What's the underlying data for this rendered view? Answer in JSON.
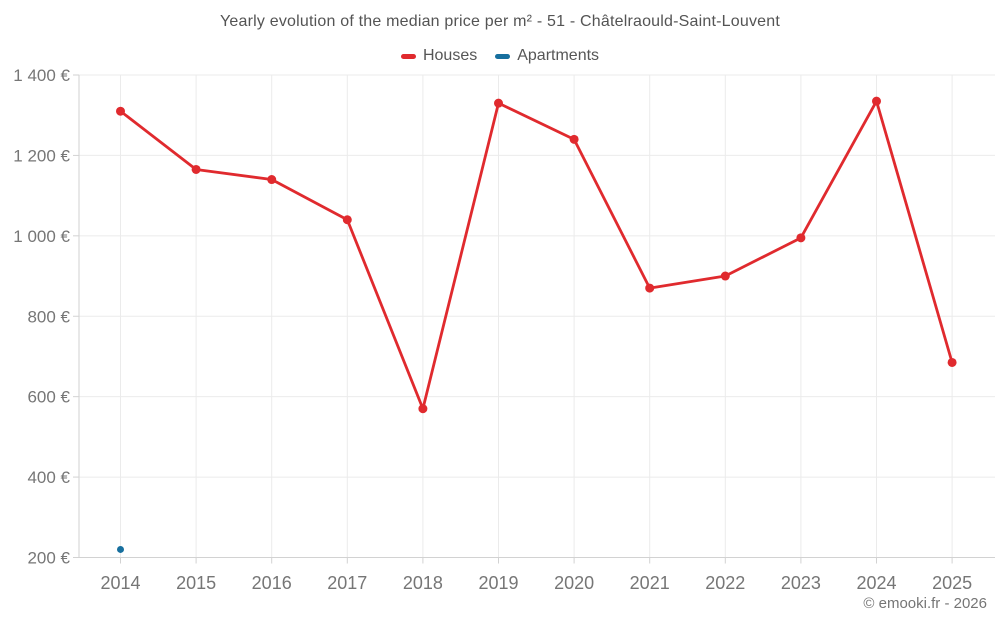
{
  "chart_data": {
    "type": "line",
    "title": "Yearly evolution of the median price per m² - 51 - Châtelraould-Saint-Louvent",
    "categories": [
      "2014",
      "2015",
      "2016",
      "2017",
      "2018",
      "2019",
      "2020",
      "2021",
      "2022",
      "2023",
      "2024",
      "2025"
    ],
    "series": [
      {
        "name": "Houses",
        "color": "#e02a2e",
        "marker_radius": 4.5,
        "values": [
          1310,
          1165,
          1140,
          1040,
          570,
          1330,
          1240,
          870,
          900,
          995,
          1335,
          685
        ]
      },
      {
        "name": "Apartments",
        "color": "#176f9e",
        "marker_radius": 3.5,
        "values": [
          220,
          null,
          null,
          null,
          null,
          null,
          null,
          null,
          null,
          null,
          null,
          null
        ]
      }
    ],
    "xlabel": "",
    "ylabel": "",
    "ylim": [
      200,
      1400
    ],
    "ytick_step": 200,
    "ytick_labels": [
      "200 €",
      "400 €",
      "600 €",
      "800 €",
      "1 000 €",
      "1 200 €",
      "1 400 €"
    ],
    "grid": true,
    "legend_position": "top",
    "colors": {
      "grid": "#ebebeb",
      "axis": "#d2d2d2",
      "tick_text": "#767676",
      "title_text": "#545454"
    }
  },
  "footer": {
    "text": "© emooki.fr - 2026"
  }
}
